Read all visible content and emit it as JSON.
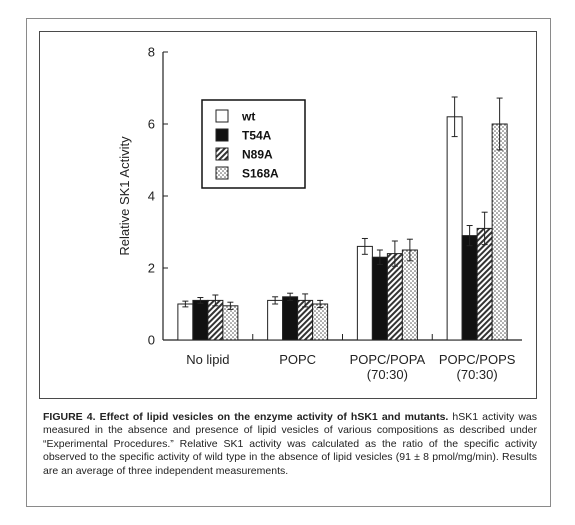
{
  "figure": {
    "label": "FIGURE 4.",
    "caption_title": "Effect of lipid vesicles on the enzyme activity of hSK1 and mutants.",
    "caption_body": "hSK1 activity was measured in the absence and presence of lipid vesicles of various compositions as described under “Experimental Procedures.” Relative SK1 activity was calculated as the ratio of the specific activity observed to the specific activity of wild type in the absence of lipid vesicles (91 ± 8 pmol/mg/min). Results are an average of three independent measurements."
  },
  "chart_data": {
    "type": "bar",
    "title": "",
    "xlabel": "",
    "ylabel": "Relative SK1 Activity",
    "ylim": [
      0,
      8
    ],
    "yticks": [
      0,
      2,
      4,
      6,
      8
    ],
    "grid": false,
    "legend_position": "top-left",
    "categories": [
      [
        "No lipid"
      ],
      [
        "POPC"
      ],
      [
        "POPC/POPA",
        "(70:30)"
      ],
      [
        "POPC/POPS",
        "(70:30)"
      ]
    ],
    "series": [
      {
        "name": "wt",
        "fill": "white",
        "values": [
          1.0,
          1.1,
          2.6,
          6.2
        ],
        "errors": [
          0.08,
          0.1,
          0.22,
          0.55
        ]
      },
      {
        "name": "T54A",
        "fill": "black",
        "values": [
          1.1,
          1.2,
          2.3,
          2.9
        ],
        "errors": [
          0.08,
          0.1,
          0.2,
          0.28
        ]
      },
      {
        "name": "N89A",
        "fill": "diagonal-hatch",
        "values": [
          1.1,
          1.1,
          2.4,
          3.1
        ],
        "errors": [
          0.15,
          0.18,
          0.35,
          0.45
        ]
      },
      {
        "name": "S168A",
        "fill": "dotted",
        "values": [
          0.95,
          1.0,
          2.5,
          6.0
        ],
        "errors": [
          0.1,
          0.1,
          0.3,
          0.72
        ]
      }
    ]
  }
}
